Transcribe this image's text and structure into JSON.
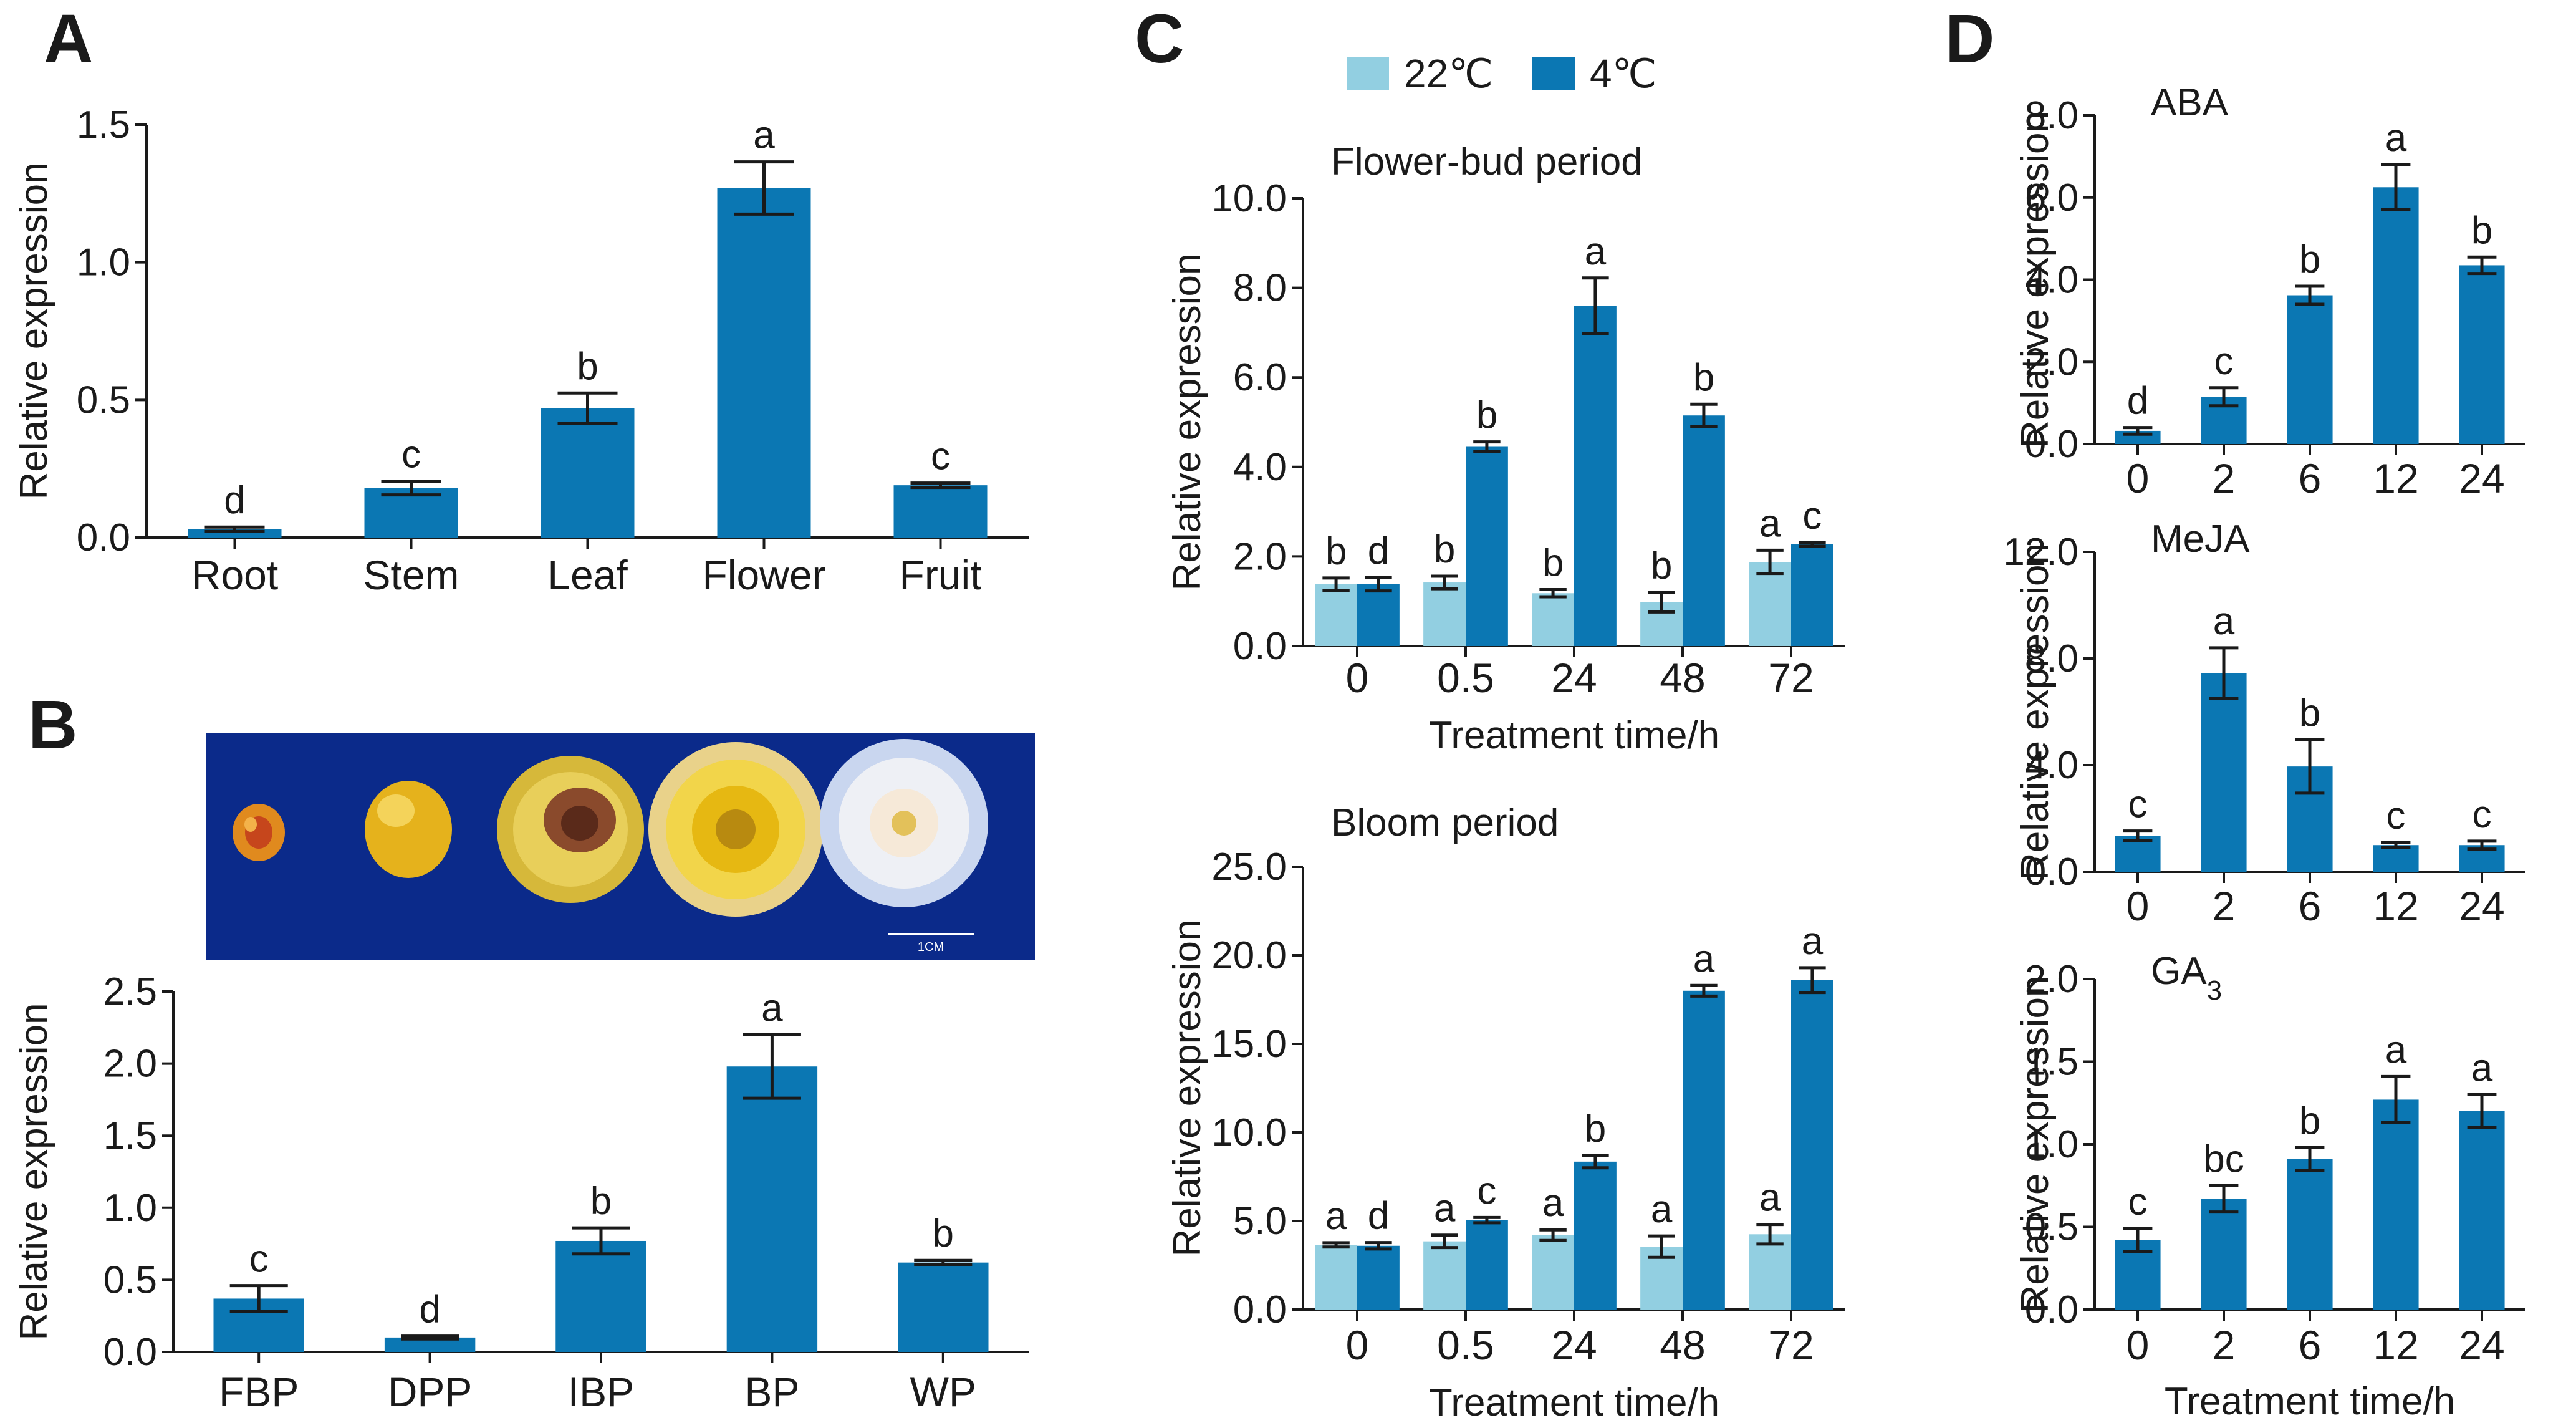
{
  "figure": {
    "legend": {
      "items": [
        {
          "label": "22℃",
          "color": "#92cfe1"
        },
        {
          "label": "4℃",
          "color": "#0b77b3"
        }
      ]
    },
    "photo": {
      "scale_label": "1CM",
      "background": "#0b2a8a"
    }
  },
  "chart_data": [
    {
      "id": "A",
      "panel_letter": "A",
      "type": "bar",
      "title": "",
      "ylabel": "Relative expression",
      "xlabel": "",
      "ylim": [
        0,
        1.5
      ],
      "yticks": [
        "0.0",
        "0.5",
        "1.0",
        "1.5"
      ],
      "ytick_values": [
        0,
        0.5,
        1.0,
        1.5
      ],
      "categories": [
        "Root",
        "Stem",
        "Leaf",
        "Flower",
        "Fruit"
      ],
      "series": [
        {
          "name": "expression",
          "color": "#0b77b3",
          "values": [
            0.03,
            0.18,
            0.47,
            1.27,
            0.19
          ],
          "errors": [
            0.008,
            0.025,
            0.055,
            0.095,
            0.008
          ],
          "labels": [
            "d",
            "c",
            "b",
            "a",
            "c"
          ]
        }
      ]
    },
    {
      "id": "B",
      "panel_letter": "B",
      "type": "bar",
      "title": "",
      "ylabel": "Relative expression",
      "xlabel": "",
      "ylim": [
        0,
        2.5
      ],
      "yticks": [
        "0.0",
        "0.5",
        "1.0",
        "1.5",
        "2.0",
        "2.5"
      ],
      "ytick_values": [
        0,
        0.5,
        1.0,
        1.5,
        2.0,
        2.5
      ],
      "categories": [
        "FBP",
        "DPP",
        "IBP",
        "BP",
        "WP"
      ],
      "series": [
        {
          "name": "expression",
          "color": "#0b77b3",
          "values": [
            0.37,
            0.1,
            0.77,
            1.98,
            0.62
          ],
          "errors": [
            0.09,
            0.01,
            0.09,
            0.22,
            0.015
          ],
          "labels": [
            "c",
            "d",
            "b",
            "a",
            "b"
          ]
        }
      ]
    },
    {
      "id": "C1",
      "panel_letter": "C",
      "type": "bar",
      "title": "Flower-bud period",
      "ylabel": "Relative expression",
      "xlabel": "Treatment time/h",
      "ylim": [
        0,
        10
      ],
      "yticks": [
        "0.0",
        "2.0",
        "4.0",
        "6.0",
        "8.0",
        "10.0"
      ],
      "ytick_values": [
        0,
        2,
        4,
        6,
        8,
        10
      ],
      "categories": [
        "0",
        "0.5",
        "24",
        "48",
        "72"
      ],
      "series": [
        {
          "name": "22℃",
          "color": "#92cfe1",
          "values": [
            1.38,
            1.42,
            1.18,
            0.98,
            1.88
          ],
          "errors": [
            0.14,
            0.14,
            0.08,
            0.22,
            0.26
          ],
          "labels": [
            "b",
            "b",
            "b",
            "b",
            "a"
          ]
        },
        {
          "name": "4℃",
          "color": "#0b77b3",
          "values": [
            1.38,
            4.45,
            7.6,
            5.15,
            2.27
          ],
          "errors": [
            0.15,
            0.11,
            0.62,
            0.25,
            0.04
          ],
          "labels": [
            "d",
            "b",
            "a",
            "b",
            "c"
          ]
        }
      ]
    },
    {
      "id": "C2",
      "type": "bar",
      "title": "Bloom period",
      "ylabel": "Relative expression",
      "xlabel": "Treatment time/h",
      "ylim": [
        0,
        25
      ],
      "yticks": [
        "0.0",
        "5.0",
        "10.0",
        "15.0",
        "20.0",
        "25.0"
      ],
      "ytick_values": [
        0,
        5,
        10,
        15,
        20,
        25
      ],
      "categories": [
        "0",
        "0.5",
        "24",
        "48",
        "72"
      ],
      "series": [
        {
          "name": "22℃",
          "color": "#92cfe1",
          "values": [
            3.65,
            3.85,
            4.2,
            3.55,
            4.25
          ],
          "errors": [
            0.12,
            0.35,
            0.3,
            0.6,
            0.55
          ],
          "labels": [
            "a",
            "a",
            "a",
            "a",
            "a"
          ]
        },
        {
          "name": "4℃",
          "color": "#0b77b3",
          "values": [
            3.6,
            5.05,
            8.35,
            18.0,
            18.6
          ],
          "errors": [
            0.18,
            0.15,
            0.35,
            0.3,
            0.7
          ],
          "labels": [
            "d",
            "c",
            "b",
            "a",
            "a"
          ]
        }
      ]
    },
    {
      "id": "D1",
      "panel_letter": "D",
      "type": "bar",
      "title": "ABA",
      "ylabel": "Relative expression",
      "xlabel": "",
      "ylim": [
        0,
        8
      ],
      "yticks": [
        "0.0",
        "2.0",
        "4.0",
        "6.0",
        "8.0"
      ],
      "ytick_values": [
        0,
        2,
        4,
        6,
        8
      ],
      "categories": [
        "0",
        "2",
        "6",
        "12",
        "24"
      ],
      "series": [
        {
          "name": "expression",
          "color": "#0b77b3",
          "values": [
            0.32,
            1.15,
            3.62,
            6.25,
            4.35
          ],
          "errors": [
            0.08,
            0.22,
            0.22,
            0.55,
            0.2
          ],
          "labels": [
            "d",
            "c",
            "b",
            "a",
            "b"
          ]
        }
      ]
    },
    {
      "id": "D2",
      "type": "bar",
      "title": "MeJA",
      "ylabel": "Relative expression",
      "xlabel": "",
      "ylim": [
        0,
        12
      ],
      "yticks": [
        "0.0",
        "4.0",
        "8.0",
        "12.0"
      ],
      "ytick_values": [
        0,
        4,
        8,
        12
      ],
      "categories": [
        "0",
        "2",
        "6",
        "12",
        "24"
      ],
      "series": [
        {
          "name": "expression",
          "color": "#0b77b3",
          "values": [
            1.35,
            7.45,
            3.95,
            1.0,
            1.0
          ],
          "errors": [
            0.18,
            0.95,
            1.0,
            0.1,
            0.15
          ],
          "labels": [
            "c",
            "a",
            "b",
            "c",
            "c"
          ]
        }
      ]
    },
    {
      "id": "D3",
      "type": "bar",
      "title": "GA",
      "title_sub": "3",
      "ylabel": "Relative expression",
      "xlabel": "Treatment time/h",
      "ylim": [
        0,
        2
      ],
      "yticks": [
        "0.0",
        "0.5",
        "1.0",
        "1.5",
        "2.0"
      ],
      "ytick_values": [
        0,
        0.5,
        1.0,
        1.5,
        2.0
      ],
      "categories": [
        "0",
        "2",
        "6",
        "12",
        "24"
      ],
      "series": [
        {
          "name": "expression",
          "color": "#0b77b3",
          "values": [
            0.42,
            0.67,
            0.91,
            1.27,
            1.2
          ],
          "errors": [
            0.07,
            0.08,
            0.07,
            0.14,
            0.1
          ],
          "labels": [
            "c",
            "bc",
            "b",
            "a",
            "a"
          ]
        }
      ]
    }
  ]
}
